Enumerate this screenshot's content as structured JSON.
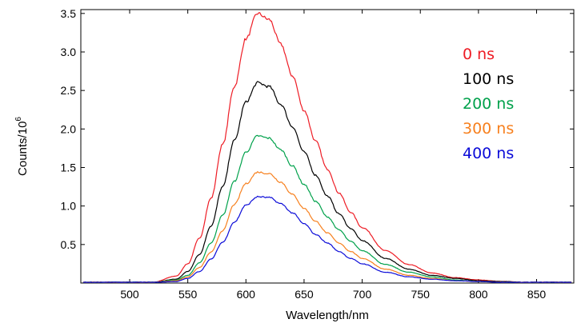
{
  "chart_data": {
    "type": "line",
    "title": "",
    "xlabel": "Wavelength/nm",
    "ylabel": {
      "main": "Counts/10",
      "sup": "6"
    },
    "xlim": [
      458,
      882
    ],
    "ylim": [
      0,
      3.55
    ],
    "xticks": [
      500,
      550,
      600,
      650,
      700,
      750,
      800,
      850
    ],
    "yticks": [
      0.5,
      1.0,
      1.5,
      2.0,
      2.5,
      3.0,
      3.5
    ],
    "ytick_labels": [
      "0.5",
      "1.0",
      "1.5",
      "2.0",
      "2.5",
      "3.0",
      "3.5"
    ],
    "grid": false,
    "legend": {
      "placement": "top-right",
      "style": "colored-text"
    },
    "x": [
      460,
      500,
      520,
      540,
      550,
      560,
      570,
      580,
      590,
      600,
      610,
      620,
      630,
      640,
      650,
      660,
      670,
      680,
      690,
      700,
      720,
      740,
      760,
      780,
      800,
      820,
      840,
      860,
      880
    ],
    "series": [
      {
        "name": "0 ns",
        "color": "#ee1c25",
        "values": [
          0.01,
          0.01,
          0.01,
          0.09,
          0.25,
          0.58,
          1.1,
          1.8,
          2.55,
          3.17,
          3.5,
          3.42,
          3.1,
          2.69,
          2.24,
          1.84,
          1.48,
          1.17,
          0.92,
          0.72,
          0.42,
          0.24,
          0.13,
          0.07,
          0.04,
          0.02,
          0.01,
          0.01,
          0.01
        ]
      },
      {
        "name": "100 ns",
        "color": "#000000",
        "values": [
          0.01,
          0.01,
          0.01,
          0.05,
          0.15,
          0.37,
          0.74,
          1.25,
          1.85,
          2.35,
          2.6,
          2.55,
          2.32,
          2.03,
          1.7,
          1.4,
          1.13,
          0.9,
          0.71,
          0.55,
          0.32,
          0.18,
          0.1,
          0.06,
          0.03,
          0.02,
          0.01,
          0.01,
          0.01
        ]
      },
      {
        "name": "200 ns",
        "color": "#00a14b",
        "values": [
          0.01,
          0.01,
          0.01,
          0.04,
          0.1,
          0.26,
          0.52,
          0.88,
          1.32,
          1.7,
          1.91,
          1.88,
          1.73,
          1.52,
          1.28,
          1.06,
          0.86,
          0.69,
          0.54,
          0.42,
          0.24,
          0.14,
          0.08,
          0.04,
          0.02,
          0.01,
          0.01,
          0.01,
          0.01
        ]
      },
      {
        "name": "300 ns",
        "color": "#f7801e",
        "values": [
          0.01,
          0.01,
          0.01,
          0.03,
          0.08,
          0.2,
          0.4,
          0.68,
          1.02,
          1.29,
          1.44,
          1.42,
          1.31,
          1.15,
          0.97,
          0.8,
          0.65,
          0.52,
          0.41,
          0.32,
          0.18,
          0.1,
          0.06,
          0.03,
          0.02,
          0.01,
          0.01,
          0.01,
          0.01
        ]
      },
      {
        "name": "400 ns",
        "color": "#0b0bd8",
        "values": [
          0.01,
          0.01,
          0.01,
          0.02,
          0.06,
          0.15,
          0.31,
          0.53,
          0.79,
          1.01,
          1.12,
          1.11,
          1.03,
          0.91,
          0.77,
          0.63,
          0.52,
          0.41,
          0.32,
          0.25,
          0.14,
          0.08,
          0.05,
          0.03,
          0.02,
          0.01,
          0.01,
          0.01,
          0.01
        ]
      }
    ]
  }
}
